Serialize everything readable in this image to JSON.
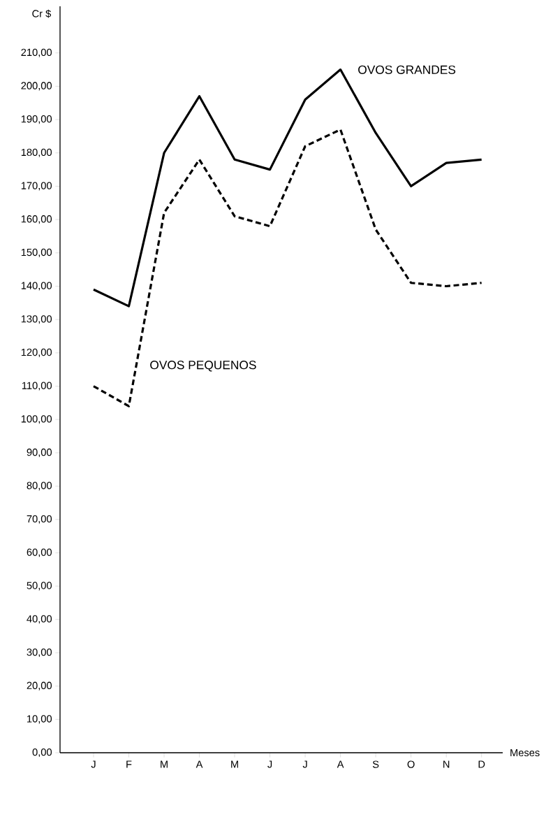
{
  "chart_data": {
    "type": "line",
    "ylabel": "Cr $",
    "xlabel": "Meses",
    "categories": [
      "J",
      "F",
      "M",
      "A",
      "M",
      "J",
      "J",
      "A",
      "S",
      "O",
      "N",
      "D"
    ],
    "ylim": [
      0,
      224
    ],
    "yticks": [
      {
        "value": 0,
        "label": "0,00"
      },
      {
        "value": 10,
        "label": "10,00"
      },
      {
        "value": 20,
        "label": "20,00"
      },
      {
        "value": 30,
        "label": "30,00"
      },
      {
        "value": 40,
        "label": "40,00"
      },
      {
        "value": 50,
        "label": "50,00"
      },
      {
        "value": 60,
        "label": "60,00"
      },
      {
        "value": 70,
        "label": "70,00"
      },
      {
        "value": 80,
        "label": "80,00"
      },
      {
        "value": 90,
        "label": "90,00"
      },
      {
        "value": 100,
        "label": "100,00"
      },
      {
        "value": 110,
        "label": "110,00"
      },
      {
        "value": 120,
        "label": "120,00"
      },
      {
        "value": 130,
        "label": "130,00"
      },
      {
        "value": 140,
        "label": "140,00"
      },
      {
        "value": 150,
        "label": "150,00"
      },
      {
        "value": 160,
        "label": "160,00"
      },
      {
        "value": 170,
        "label": "170,00"
      },
      {
        "value": 180,
        "label": "180,00"
      },
      {
        "value": 190,
        "label": "190,00"
      },
      {
        "value": 200,
        "label": "200,00"
      },
      {
        "value": 210,
        "label": "210,00"
      }
    ],
    "series": [
      {
        "name": "OVOS GRANDES",
        "color": "#000000",
        "line_style": "solid",
        "values": [
          139,
          134,
          180,
          197,
          178,
          175,
          196,
          205,
          186,
          170,
          177,
          178
        ]
      },
      {
        "name": "OVOS PEQUENOS",
        "color": "#000000",
        "line_style": "dashed",
        "values": [
          110,
          104,
          162,
          178,
          161,
          158,
          182,
          187,
          157,
          141,
          140,
          141
        ]
      }
    ]
  }
}
